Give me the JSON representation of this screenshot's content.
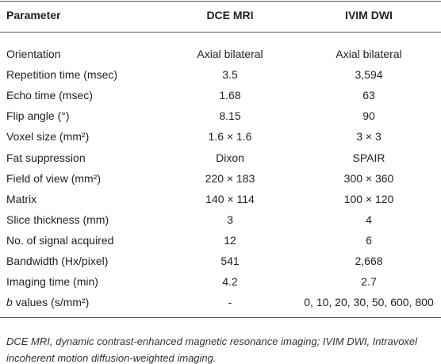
{
  "table": {
    "header": [
      "Parameter",
      "DCE MRI",
      "IVIM DWI"
    ],
    "rows": [
      [
        "Orientation",
        "Axial bilateral",
        "Axial bilateral"
      ],
      [
        "Repetition time (msec)",
        "3.5",
        "3,594"
      ],
      [
        "Echo time (msec)",
        "1.68",
        "63"
      ],
      [
        "Flip angle (°)",
        "8.15",
        "90"
      ],
      [
        "Voxel size (mm²)",
        "1.6 × 1.6",
        "3 × 3"
      ],
      [
        "Fat suppression",
        "Dixon",
        "SPAIR"
      ],
      [
        "Field of view (mm²)",
        "220 × 183",
        "300 × 360"
      ],
      [
        "Matrix",
        "140 × 114",
        "100 × 120"
      ],
      [
        "Slice thickness (mm)",
        "3",
        "4"
      ],
      [
        "No. of signal acquired",
        "12",
        "6"
      ],
      [
        "Bandwidth (Hx/pixel)",
        "541",
        "2,668"
      ],
      [
        "Imaging time (min)",
        "4.2",
        "2.7"
      ],
      [
        [
          "b",
          " values (s/mm²)"
        ],
        "-",
        "0, 10, 20, 30, 50, 600, 800"
      ]
    ]
  },
  "footnote": "DCE MRI, dynamic contrast-enhanced magnetic resonance imaging; IVIM DWI, Intravoxel incoherent motion diffusion-weighted imaging."
}
